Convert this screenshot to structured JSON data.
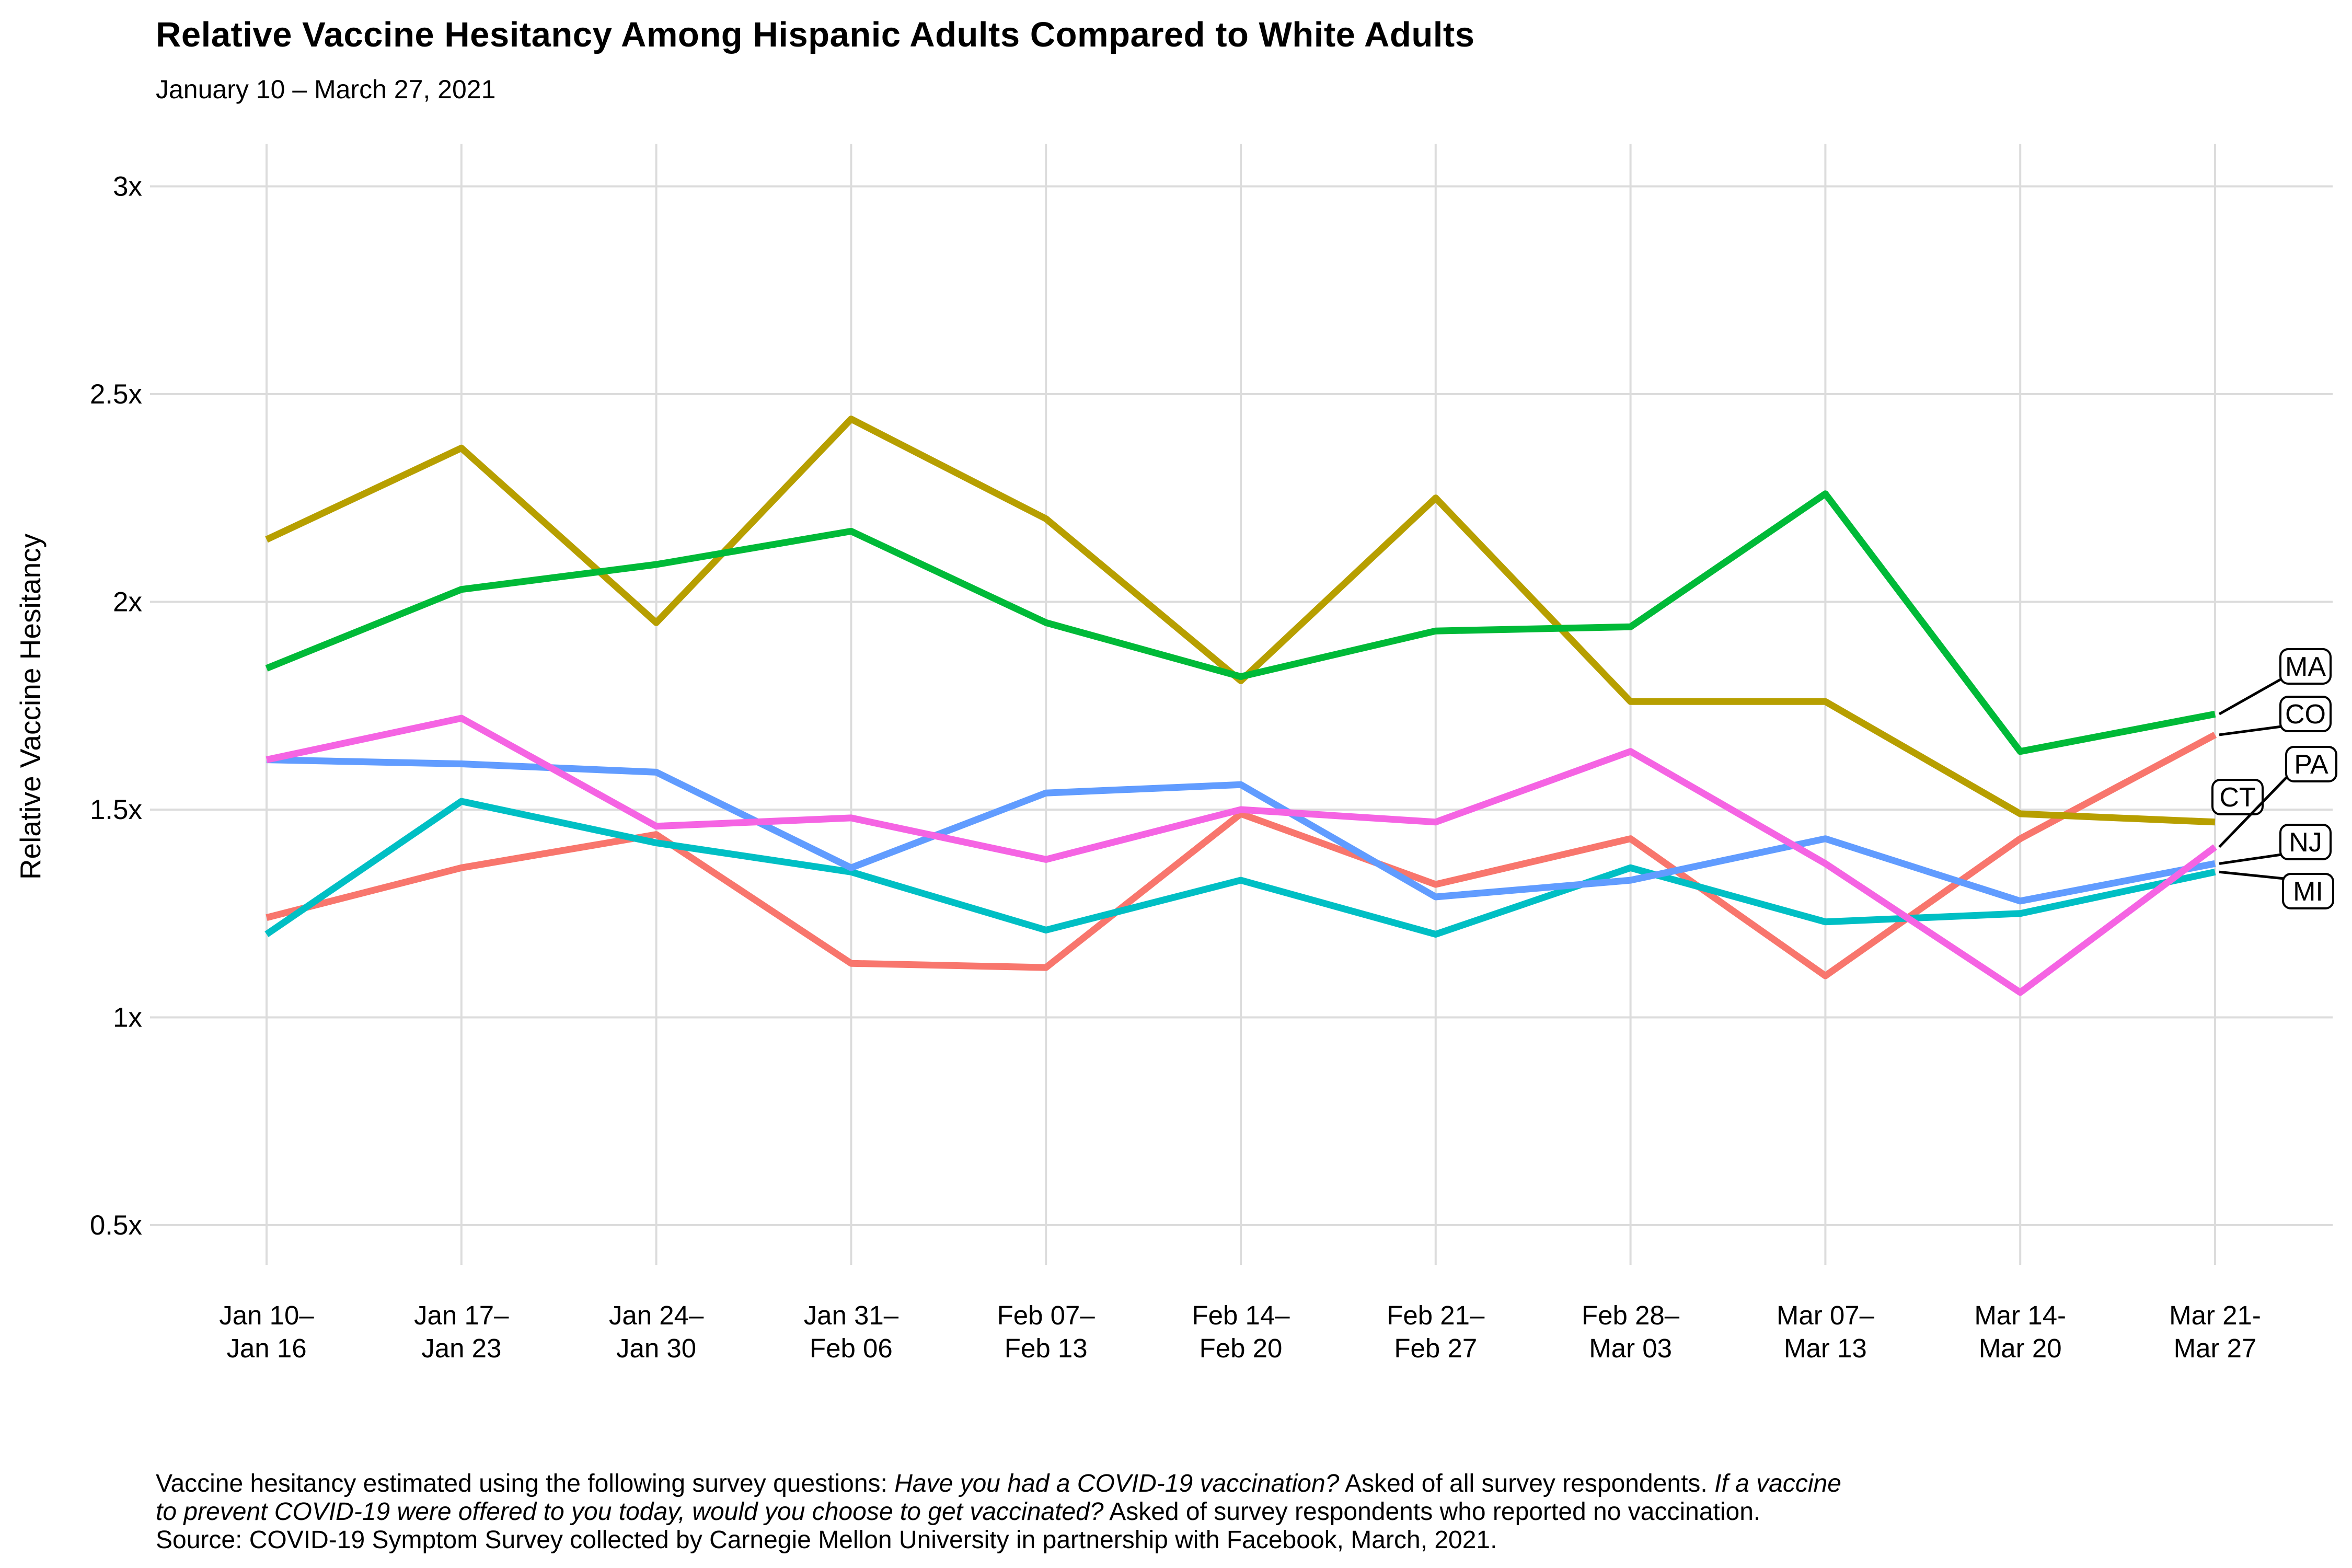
{
  "header": {
    "title": "Relative Vaccine Hesitancy Among Hispanic Adults Compared to White Adults",
    "subtitle": "January 10 – March 27, 2021"
  },
  "y_axis": {
    "title": "Relative Vaccine Hesitancy",
    "ticks": [
      {
        "v": 0.5,
        "label": "0.5x"
      },
      {
        "v": 1.0,
        "label": "1x"
      },
      {
        "v": 1.5,
        "label": "1.5x"
      },
      {
        "v": 2.0,
        "label": "2x"
      },
      {
        "v": 2.5,
        "label": "2.5x"
      },
      {
        "v": 3.0,
        "label": "3x"
      }
    ]
  },
  "chart_data": {
    "type": "line",
    "title": "Relative Vaccine Hesitancy Among Hispanic Adults Compared to White Adults",
    "subtitle": "January 10 – March 27, 2021",
    "xlabel": "",
    "ylabel": "Relative Vaccine Hesitancy",
    "ylim": [
      0.5,
      3
    ],
    "ytick_labels": [
      "0.5x",
      "1x",
      "1.5x",
      "2x",
      "2.5x",
      "3x"
    ],
    "grid": "major gridlines only, light gray, no axis lines",
    "legend": "direct labels in rounded boxes at right edge with black leader lines",
    "categories": [
      [
        "Jan 10–",
        "Jan 16"
      ],
      [
        "Jan 17–",
        "Jan 23"
      ],
      [
        "Jan 24–",
        "Jan 30"
      ],
      [
        "Jan 31–",
        "Feb 06"
      ],
      [
        "Feb 07–",
        "Feb 13"
      ],
      [
        "Feb 14–",
        "Feb 20"
      ],
      [
        "Feb 21–",
        "Feb 27"
      ],
      [
        "Feb 28–",
        "Mar 03"
      ],
      [
        "Mar 07–",
        "Mar 13"
      ],
      [
        "Mar 14-",
        "Mar 20"
      ],
      [
        "Mar 21-",
        "Mar 27"
      ]
    ],
    "series": [
      {
        "name": "CO",
        "color": "#F8766D",
        "label_slot": 1,
        "values": [
          1.24,
          1.36,
          1.44,
          1.13,
          1.12,
          1.49,
          1.32,
          1.43,
          1.1,
          1.43,
          1.68
        ]
      },
      {
        "name": "CT",
        "color": "#B79F00",
        "label_slot": 3,
        "values": [
          2.15,
          2.37,
          1.95,
          2.44,
          2.2,
          1.81,
          2.25,
          1.76,
          1.76,
          1.49,
          1.47
        ]
      },
      {
        "name": "MA",
        "color": "#00BA38",
        "label_slot": 0,
        "values": [
          1.84,
          2.03,
          2.09,
          2.17,
          1.95,
          1.82,
          1.93,
          1.94,
          2.26,
          1.64,
          1.73
        ]
      },
      {
        "name": "MI",
        "color": "#00BFC4",
        "label_slot": 5,
        "values": [
          1.2,
          1.52,
          1.42,
          1.35,
          1.21,
          1.33,
          1.2,
          1.36,
          1.23,
          1.25,
          1.35
        ]
      },
      {
        "name": "NJ",
        "color": "#619CFF",
        "label_slot": 4,
        "values": [
          1.62,
          1.61,
          1.59,
          1.36,
          1.54,
          1.56,
          1.29,
          1.33,
          1.43,
          1.28,
          1.37
        ]
      },
      {
        "name": "PA",
        "color": "#F564E3",
        "label_slot": 2,
        "values": [
          1.62,
          1.72,
          1.46,
          1.48,
          1.38,
          1.5,
          1.47,
          1.64,
          1.37,
          1.06,
          1.41
        ]
      }
    ]
  },
  "footer": {
    "lines": [
      [
        {
          "text": "Vaccine hesitancy estimated using the following survey questions: ",
          "italic": false
        },
        {
          "text": "Have you had a COVID-19 vaccination?",
          "italic": true
        },
        {
          "text": " Asked of all survey respondents. ",
          "italic": false
        },
        {
          "text": "If a vaccine",
          "italic": true
        }
      ],
      [
        {
          "text": "to prevent COVID-19 were offered to you today, would you choose to get vaccinated?",
          "italic": true
        },
        {
          "text": " Asked of survey respondents who reported no vaccination.",
          "italic": false
        }
      ],
      [
        {
          "text": "Source: COVID-19 Symptom Survey collected by Carnegie Mellon University in partnership with Facebook, March, 2021.",
          "italic": false
        }
      ]
    ]
  },
  "colors": {
    "gridline": "#DCDCDC",
    "text": "#000000",
    "label_box_border": "#000000",
    "label_box_fill": "#FFFFFF"
  }
}
